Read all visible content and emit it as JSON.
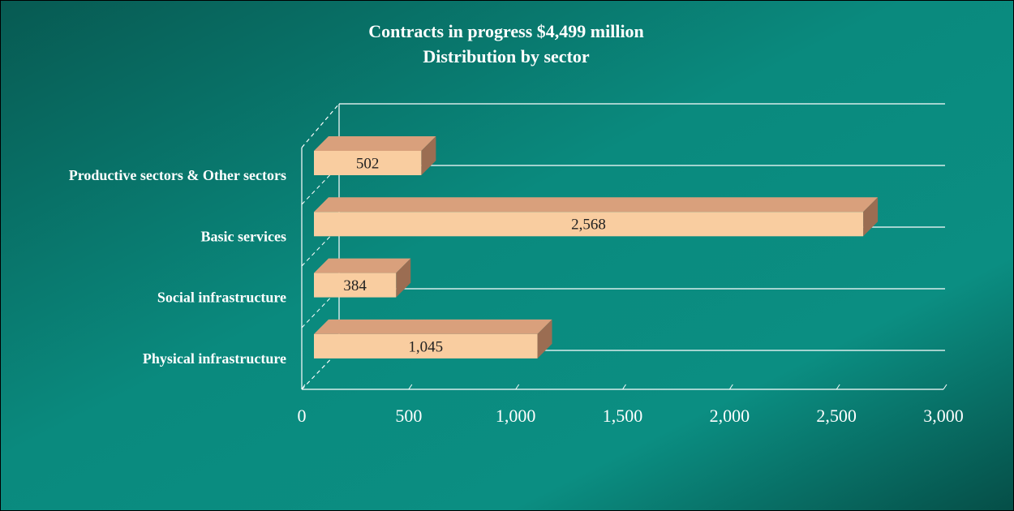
{
  "chart_data": {
    "type": "bar3d",
    "title": "Contracts in progress $4,499 million",
    "subtitle": "Distribution by sector",
    "categories": [
      "Productive sectors & Other sectors",
      "Basic services",
      "Social infrastructure",
      "Physical infrastructure"
    ],
    "values": [
      502,
      2568,
      384,
      1045
    ],
    "value_labels": [
      "502",
      "2,568",
      "384",
      "1,045"
    ],
    "color": "#f9cda0",
    "xlim": [
      0,
      3000
    ],
    "xticks": [
      0,
      500,
      {
        "value": 1000,
        "label": "1,000"
      },
      {
        "value": 1500,
        "label": "1,500"
      },
      {
        "value": 2000,
        "label": "2,000"
      },
      {
        "value": 2500,
        "label": "2,500"
      },
      {
        "value": 3000,
        "label": "3,000"
      }
    ],
    "grid": true
  }
}
